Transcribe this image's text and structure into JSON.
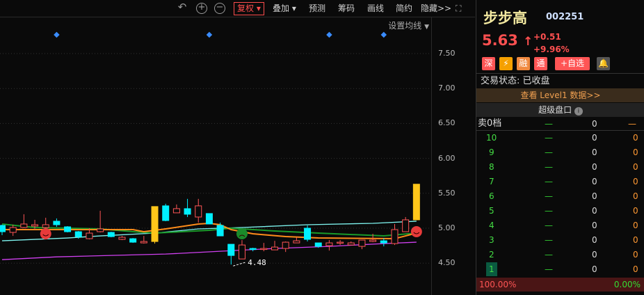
{
  "toolbar": {
    "undo_icon": "undo-icon",
    "zoom_in_icon": "plus-circle-icon",
    "zoom_out_icon": "minus-circle-icon",
    "items": [
      "复权",
      "叠加",
      "预测",
      "筹码",
      "画线",
      "简约",
      "隐藏>>"
    ],
    "fullscreen_icon": "expand-icon"
  },
  "chart": {
    "ma_setting": "设置均线",
    "price_labels": [
      "7.50",
      "7.00",
      "6.50",
      "6.00",
      "5.50",
      "5.00",
      "4.50"
    ],
    "low_label": "4.48",
    "colors": {
      "up": "#ff5555",
      "down": "#00f0ff",
      "limit": "#ffc61a",
      "ma1": "#ff8c1a",
      "ma2": "#1a9a2a",
      "ma3": "#7ff5f0",
      "ma4": "#d040f0",
      "marker": "#3a8cff"
    },
    "candles": [
      [
        5.04,
        4.95,
        5.05,
        4.9
      ],
      [
        4.94,
        5.01,
        5.05,
        4.89
      ],
      [
        5.01,
        5.06,
        5.2,
        5.0
      ],
      [
        5.03,
        5.05,
        5.12,
        4.98
      ],
      [
        5.01,
        5.05,
        5.15,
        5.0
      ],
      [
        5.1,
        5.05,
        5.14,
        5.02
      ],
      [
        5.02,
        4.95,
        5.03,
        4.94
      ],
      [
        4.95,
        4.88,
        4.96,
        4.85
      ],
      [
        4.85,
        4.93,
        5.0,
        4.84
      ],
      [
        4.95,
        4.99,
        5.25,
        4.94
      ],
      [
        4.94,
        4.88,
        4.95,
        4.87
      ],
      [
        4.84,
        4.87,
        4.89,
        4.83
      ],
      [
        4.85,
        4.8,
        4.86,
        4.79
      ],
      [
        4.79,
        4.81,
        4.89,
        4.78
      ],
      [
        4.81,
        5.31,
        5.31,
        4.78
      ],
      [
        5.32,
        5.11,
        5.35,
        5.1
      ],
      [
        5.22,
        5.28,
        5.34,
        5.22
      ],
      [
        5.28,
        5.2,
        5.42,
        5.16
      ],
      [
        5.16,
        5.32,
        5.42,
        5.08
      ],
      [
        5.21,
        5.06,
        5.21,
        5.06
      ],
      [
        5.04,
        4.89,
        5.08,
        4.89
      ],
      [
        4.77,
        4.61,
        4.77,
        4.48
      ],
      [
        4.56,
        4.76,
        4.83,
        4.56
      ],
      [
        4.71,
        4.7,
        4.72,
        4.67
      ],
      [
        4.7,
        4.71,
        4.79,
        4.67
      ],
      [
        4.69,
        4.73,
        4.82,
        4.69
      ],
      [
        4.71,
        4.8,
        4.81,
        4.66
      ],
      [
        4.79,
        4.82,
        4.87,
        4.79
      ],
      [
        5.0,
        4.84,
        5.04,
        4.81
      ],
      [
        4.79,
        4.74,
        4.79,
        4.72
      ],
      [
        4.75,
        4.79,
        4.83,
        4.68
      ],
      [
        4.79,
        4.8,
        4.83,
        4.76
      ],
      [
        4.76,
        4.79,
        4.81,
        4.76
      ],
      [
        4.74,
        4.83,
        4.83,
        4.7
      ],
      [
        4.81,
        4.83,
        4.92,
        4.8
      ],
      [
        4.82,
        4.79,
        4.86,
        4.74
      ],
      [
        4.78,
        4.98,
        5.06,
        4.76
      ],
      [
        4.95,
        5.12,
        5.16,
        4.95
      ],
      [
        5.12,
        5.63,
        5.63,
        5.12
      ]
    ],
    "limit_up_index": [
      14,
      38
    ],
    "ma": {
      "ma1": [
        [
          0,
          4.98
        ],
        [
          12,
          4.98
        ],
        [
          13,
          4.95
        ],
        [
          15,
          4.99
        ],
        [
          18,
          5.06
        ],
        [
          19,
          5.07
        ],
        [
          20,
          5.05
        ],
        [
          21,
          4.98
        ],
        [
          23,
          4.92
        ],
        [
          26,
          4.88
        ],
        [
          29,
          4.86
        ],
        [
          36,
          4.85
        ],
        [
          37,
          4.89
        ],
        [
          38,
          4.93
        ]
      ],
      "ma2": [
        [
          0,
          5.06
        ],
        [
          3,
          5.01
        ],
        [
          9,
          4.99
        ],
        [
          12,
          4.95
        ],
        [
          14,
          4.93
        ],
        [
          19,
          4.97
        ],
        [
          21,
          5.0
        ],
        [
          25,
          4.96
        ],
        [
          29,
          4.93
        ],
        [
          35,
          4.89
        ],
        [
          38,
          4.93
        ]
      ],
      "ma3": [
        [
          0,
          4.82
        ],
        [
          6,
          4.86
        ],
        [
          9,
          4.89
        ],
        [
          14,
          4.93
        ],
        [
          18,
          4.99
        ],
        [
          22,
          5.01
        ],
        [
          28,
          5.05
        ],
        [
          34,
          5.07
        ],
        [
          38,
          5.1
        ]
      ],
      "ma4": [
        [
          0,
          4.55
        ],
        [
          5,
          4.59
        ],
        [
          10,
          4.61
        ],
        [
          15,
          4.63
        ],
        [
          20,
          4.67
        ],
        [
          25,
          4.71
        ],
        [
          30,
          4.74
        ],
        [
          35,
          4.78
        ],
        [
          38,
          4.8
        ]
      ]
    },
    "markers": [
      5,
      19,
      30,
      35
    ],
    "faces": [
      {
        "index": 4,
        "type": "smile"
      },
      {
        "index": 22,
        "type": "frown"
      },
      {
        "index": 38,
        "type": "smile"
      }
    ]
  },
  "stock": {
    "name": "步步高",
    "code": "002251",
    "price": "5.63",
    "arrow": "↑",
    "change": "+0.51",
    "pct": "+9.96%",
    "badges": [
      "深",
      "⚡",
      "融",
      "通",
      "+自选"
    ],
    "bell_icon": "bell-icon",
    "status": "交易状态: 已收盘",
    "level1": "查看 Level1 数据>>",
    "super": "超级盘口",
    "info_icon": "info-icon"
  },
  "book": {
    "header": {
      "label": "卖0档",
      "dash": "—",
      "vol": "0",
      "other": "—"
    },
    "rows": [
      {
        "n": "10",
        "v": "0",
        "o": "0"
      },
      {
        "n": "9",
        "v": "0",
        "o": "0"
      },
      {
        "n": "8",
        "v": "0",
        "o": "0"
      },
      {
        "n": "7",
        "v": "0",
        "o": "0"
      },
      {
        "n": "6",
        "v": "0",
        "o": "0"
      },
      {
        "n": "5",
        "v": "0",
        "o": "0"
      },
      {
        "n": "4",
        "v": "0",
        "o": "0"
      },
      {
        "n": "3",
        "v": "0",
        "o": "0"
      },
      {
        "n": "2",
        "v": "0",
        "o": "0"
      },
      {
        "n": "1",
        "v": "0",
        "o": "0"
      }
    ],
    "dash": "—",
    "buy_ratio": "100.00%",
    "sell_ratio": "0.00%"
  }
}
